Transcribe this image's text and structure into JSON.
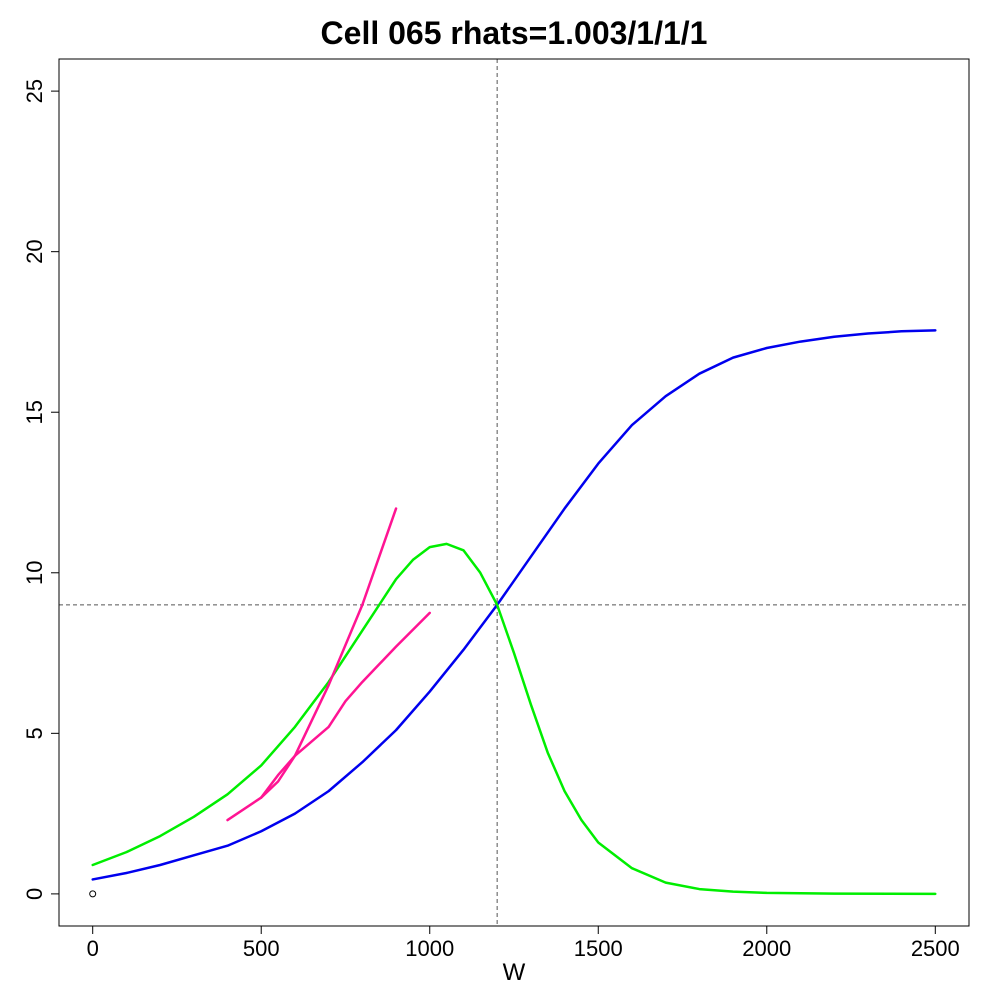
{
  "chart_data": {
    "type": "line",
    "title": "Cell 065 rhats=1.003/1/1/1",
    "xlabel": "W",
    "ylabel": "",
    "xlim": [
      -100,
      2600
    ],
    "ylim": [
      -1,
      26
    ],
    "xticks": [
      0,
      500,
      1000,
      1500,
      2000,
      2500
    ],
    "yticks": [
      0,
      5,
      10,
      15,
      20,
      25
    ],
    "grid": false,
    "reference_lines": {
      "vertical_x": 1200,
      "horizontal_y": 9
    },
    "points": [
      {
        "x": 0,
        "y": 0
      }
    ],
    "series": [
      {
        "color": "#0000ee",
        "x": [
          0,
          100,
          200,
          300,
          400,
          500,
          600,
          700,
          800,
          900,
          1000,
          1100,
          1200,
          1300,
          1400,
          1500,
          1600,
          1700,
          1800,
          1900,
          2000,
          2100,
          2200,
          2300,
          2400,
          2500
        ],
        "y": [
          0.45,
          0.65,
          0.9,
          1.2,
          1.5,
          1.95,
          2.5,
          3.2,
          4.1,
          5.1,
          6.3,
          7.6,
          9.0,
          10.5,
          12.0,
          13.4,
          14.6,
          15.5,
          16.2,
          16.7,
          17.0,
          17.2,
          17.35,
          17.45,
          17.52,
          17.55
        ]
      },
      {
        "color": "#00ee00",
        "x": [
          0,
          100,
          200,
          300,
          400,
          500,
          600,
          700,
          800,
          900,
          950,
          1000,
          1050,
          1100,
          1150,
          1200,
          1250,
          1300,
          1350,
          1400,
          1450,
          1500,
          1600,
          1700,
          1800,
          1900,
          2000,
          2200,
          2500
        ],
        "y": [
          0.9,
          1.3,
          1.8,
          2.4,
          3.1,
          4.0,
          5.2,
          6.6,
          8.2,
          9.8,
          10.4,
          10.8,
          10.9,
          10.7,
          10.0,
          9.0,
          7.5,
          5.9,
          4.4,
          3.2,
          2.3,
          1.6,
          0.8,
          0.35,
          0.15,
          0.07,
          0.03,
          0.01,
          0.0
        ]
      },
      {
        "color": "#ff1493",
        "x": [
          400,
          500,
          550,
          600,
          700,
          750,
          800,
          900,
          1000
        ],
        "y": [
          2.3,
          3.0,
          3.7,
          4.3,
          5.2,
          6.0,
          6.6,
          7.7,
          8.75
        ]
      },
      {
        "color": "#ff1493",
        "x": [
          500,
          550,
          600,
          700,
          800,
          900
        ],
        "y": [
          3.0,
          3.5,
          4.3,
          6.5,
          9.0,
          12.0
        ]
      }
    ]
  }
}
